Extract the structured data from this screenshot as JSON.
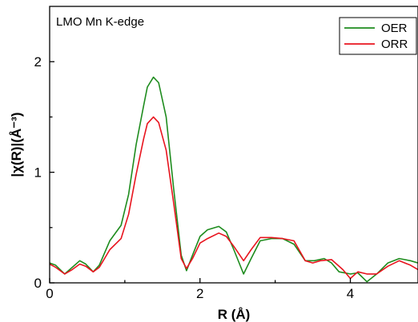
{
  "chart_data": {
    "type": "line",
    "title": "",
    "annotation": "LMO Mn K-edge",
    "xlabel": "R (Å)",
    "ylabel": "|χ(R)|(Å⁻³)",
    "xlim": [
      0,
      4.9
    ],
    "ylim": [
      0,
      2.5
    ],
    "x_ticks": [
      0,
      2,
      4
    ],
    "y_ticks": [
      0,
      1,
      2
    ],
    "grid": false,
    "legend_position": "top-right",
    "series": [
      {
        "name": "OER",
        "color": "#1e8c1e",
        "points": [
          [
            0,
            0.18
          ],
          [
            0.08,
            0.16
          ],
          [
            0.2,
            0.08
          ],
          [
            0.3,
            0.14
          ],
          [
            0.4,
            0.2
          ],
          [
            0.48,
            0.17
          ],
          [
            0.58,
            0.1
          ],
          [
            0.66,
            0.16
          ],
          [
            0.8,
            0.38
          ],
          [
            0.95,
            0.52
          ],
          [
            1.05,
            0.8
          ],
          [
            1.15,
            1.25
          ],
          [
            1.25,
            1.6
          ],
          [
            1.3,
            1.77
          ],
          [
            1.38,
            1.86
          ],
          [
            1.45,
            1.81
          ],
          [
            1.55,
            1.5
          ],
          [
            1.65,
            0.85
          ],
          [
            1.75,
            0.25
          ],
          [
            1.82,
            0.11
          ],
          [
            1.9,
            0.25
          ],
          [
            2.0,
            0.42
          ],
          [
            2.1,
            0.48
          ],
          [
            2.25,
            0.51
          ],
          [
            2.35,
            0.46
          ],
          [
            2.45,
            0.3
          ],
          [
            2.58,
            0.08
          ],
          [
            2.68,
            0.22
          ],
          [
            2.8,
            0.38
          ],
          [
            2.95,
            0.4
          ],
          [
            3.1,
            0.4
          ],
          [
            3.25,
            0.35
          ],
          [
            3.4,
            0.2
          ],
          [
            3.52,
            0.2
          ],
          [
            3.65,
            0.22
          ],
          [
            3.75,
            0.18
          ],
          [
            3.85,
            0.1
          ],
          [
            4.0,
            0.08
          ],
          [
            4.1,
            0.09
          ],
          [
            4.22,
            0.01
          ],
          [
            4.35,
            0.08
          ],
          [
            4.5,
            0.18
          ],
          [
            4.65,
            0.22
          ],
          [
            4.8,
            0.2
          ],
          [
            4.9,
            0.18
          ]
        ]
      },
      {
        "name": "ORR",
        "color": "#e8141e",
        "points": [
          [
            0,
            0.17
          ],
          [
            0.08,
            0.14
          ],
          [
            0.2,
            0.08
          ],
          [
            0.3,
            0.12
          ],
          [
            0.4,
            0.17
          ],
          [
            0.48,
            0.15
          ],
          [
            0.58,
            0.1
          ],
          [
            0.66,
            0.14
          ],
          [
            0.8,
            0.3
          ],
          [
            0.95,
            0.4
          ],
          [
            1.05,
            0.62
          ],
          [
            1.15,
            0.98
          ],
          [
            1.25,
            1.3
          ],
          [
            1.3,
            1.44
          ],
          [
            1.38,
            1.5
          ],
          [
            1.45,
            1.45
          ],
          [
            1.55,
            1.2
          ],
          [
            1.65,
            0.72
          ],
          [
            1.75,
            0.22
          ],
          [
            1.82,
            0.13
          ],
          [
            1.9,
            0.22
          ],
          [
            2.0,
            0.36
          ],
          [
            2.1,
            0.4
          ],
          [
            2.25,
            0.45
          ],
          [
            2.35,
            0.42
          ],
          [
            2.45,
            0.33
          ],
          [
            2.58,
            0.2
          ],
          [
            2.68,
            0.3
          ],
          [
            2.8,
            0.41
          ],
          [
            2.95,
            0.41
          ],
          [
            3.1,
            0.4
          ],
          [
            3.25,
            0.38
          ],
          [
            3.4,
            0.2
          ],
          [
            3.5,
            0.18
          ],
          [
            3.6,
            0.2
          ],
          [
            3.75,
            0.21
          ],
          [
            3.9,
            0.12
          ],
          [
            4.0,
            0.04
          ],
          [
            4.1,
            0.1
          ],
          [
            4.22,
            0.08
          ],
          [
            4.35,
            0.08
          ],
          [
            4.5,
            0.15
          ],
          [
            4.65,
            0.2
          ],
          [
            4.8,
            0.16
          ],
          [
            4.9,
            0.12
          ]
        ]
      }
    ]
  }
}
